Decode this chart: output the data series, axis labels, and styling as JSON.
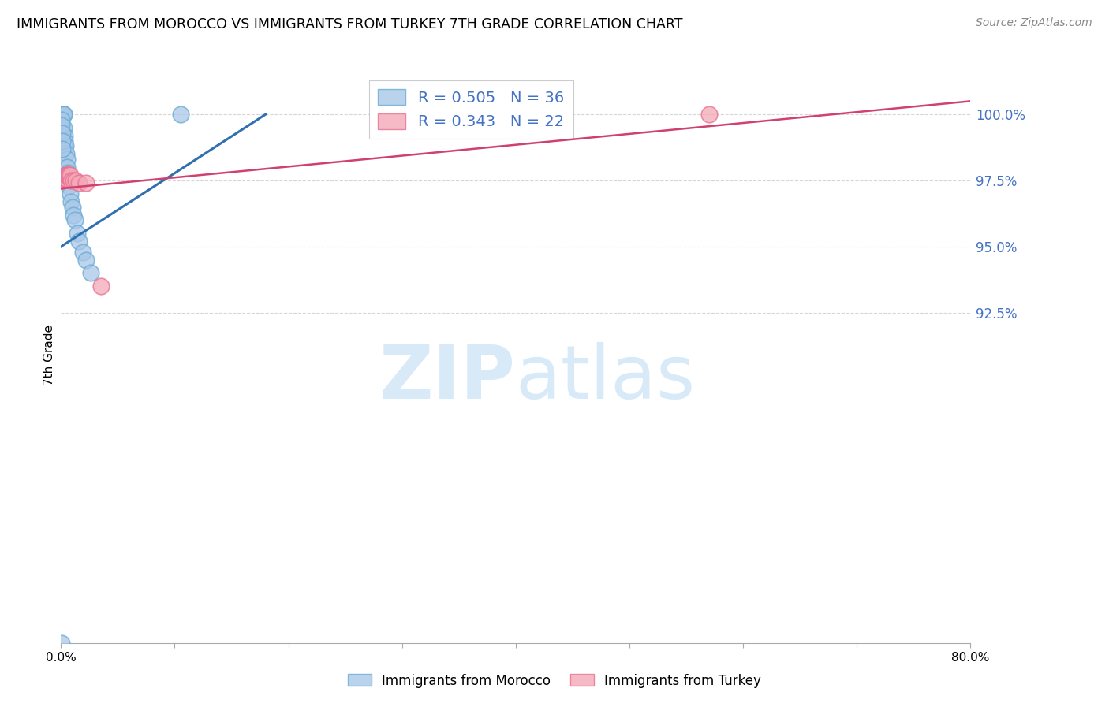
{
  "title": "IMMIGRANTS FROM MOROCCO VS IMMIGRANTS FROM TURKEY 7TH GRADE CORRELATION CHART",
  "source": "Source: ZipAtlas.com",
  "ylabel": "7th Grade",
  "xlim": [
    0.0,
    80.0
  ],
  "ylim": [
    80.0,
    101.8
  ],
  "yticks": [
    92.5,
    95.0,
    97.5,
    100.0
  ],
  "ytick_labels": [
    "92.5%",
    "95.0%",
    "97.5%",
    "100.0%"
  ],
  "xtick_vals": [
    0,
    10,
    20,
    30,
    40,
    50,
    60,
    70,
    80
  ],
  "xtick_labels": [
    "0.0%",
    "",
    "",
    "",
    "",
    "",
    "",
    "",
    "80.0%"
  ],
  "blue_label": "Immigrants from Morocco",
  "pink_label": "Immigrants from Turkey",
  "blue_R": "0.505",
  "blue_N": "36",
  "pink_R": "0.343",
  "pink_N": "22",
  "blue_color": "#a8c8e8",
  "pink_color": "#f4a8b8",
  "blue_edge_color": "#6aaad4",
  "pink_edge_color": "#e87090",
  "blue_line_color": "#3070b0",
  "pink_line_color": "#d04070",
  "blue_x": [
    0.05,
    0.08,
    0.1,
    0.12,
    0.15,
    0.18,
    0.2,
    0.22,
    0.25,
    0.28,
    0.3,
    0.35,
    0.4,
    0.45,
    0.5,
    0.55,
    0.6,
    0.65,
    0.7,
    0.8,
    0.9,
    1.0,
    1.1,
    1.2,
    1.4,
    1.6,
    1.9,
    2.2,
    2.6,
    0.05,
    0.07,
    0.09,
    0.11,
    0.14,
    10.5,
    0.05
  ],
  "blue_y": [
    100.0,
    100.0,
    100.0,
    100.0,
    100.0,
    100.0,
    100.0,
    100.0,
    100.0,
    99.5,
    99.2,
    99.0,
    98.8,
    98.5,
    98.3,
    98.0,
    97.8,
    97.5,
    97.3,
    97.0,
    96.7,
    96.5,
    96.2,
    96.0,
    95.5,
    95.2,
    94.8,
    94.5,
    94.0,
    99.8,
    99.6,
    99.3,
    99.0,
    98.7,
    100.0,
    80.0
  ],
  "pink_x": [
    0.05,
    0.08,
    0.1,
    0.12,
    0.15,
    0.18,
    0.2,
    0.25,
    0.3,
    0.35,
    0.4,
    0.5,
    0.6,
    0.7,
    0.8,
    0.9,
    1.1,
    1.3,
    1.6,
    2.2,
    57.0,
    3.5
  ],
  "pink_y": [
    97.5,
    97.5,
    97.5,
    97.5,
    97.5,
    97.6,
    97.6,
    97.6,
    97.6,
    97.6,
    97.7,
    97.7,
    97.7,
    97.7,
    97.7,
    97.5,
    97.5,
    97.5,
    97.4,
    97.4,
    100.0,
    93.5
  ],
  "blue_line_x0": 0.0,
  "blue_line_y0": 95.0,
  "blue_line_x1": 18.0,
  "blue_line_y1": 100.0,
  "pink_line_x0": 0.0,
  "pink_line_y0": 97.2,
  "pink_line_x1": 80.0,
  "pink_line_y1": 100.5,
  "watermark_zip": "ZIP",
  "watermark_atlas": "atlas",
  "watermark_color": "#d8eaf8",
  "background_color": "#ffffff",
  "title_fontsize": 12.5,
  "axis_label_color": "#4472c4",
  "grid_color": "#cccccc",
  "legend_text_color": "#4472c4"
}
